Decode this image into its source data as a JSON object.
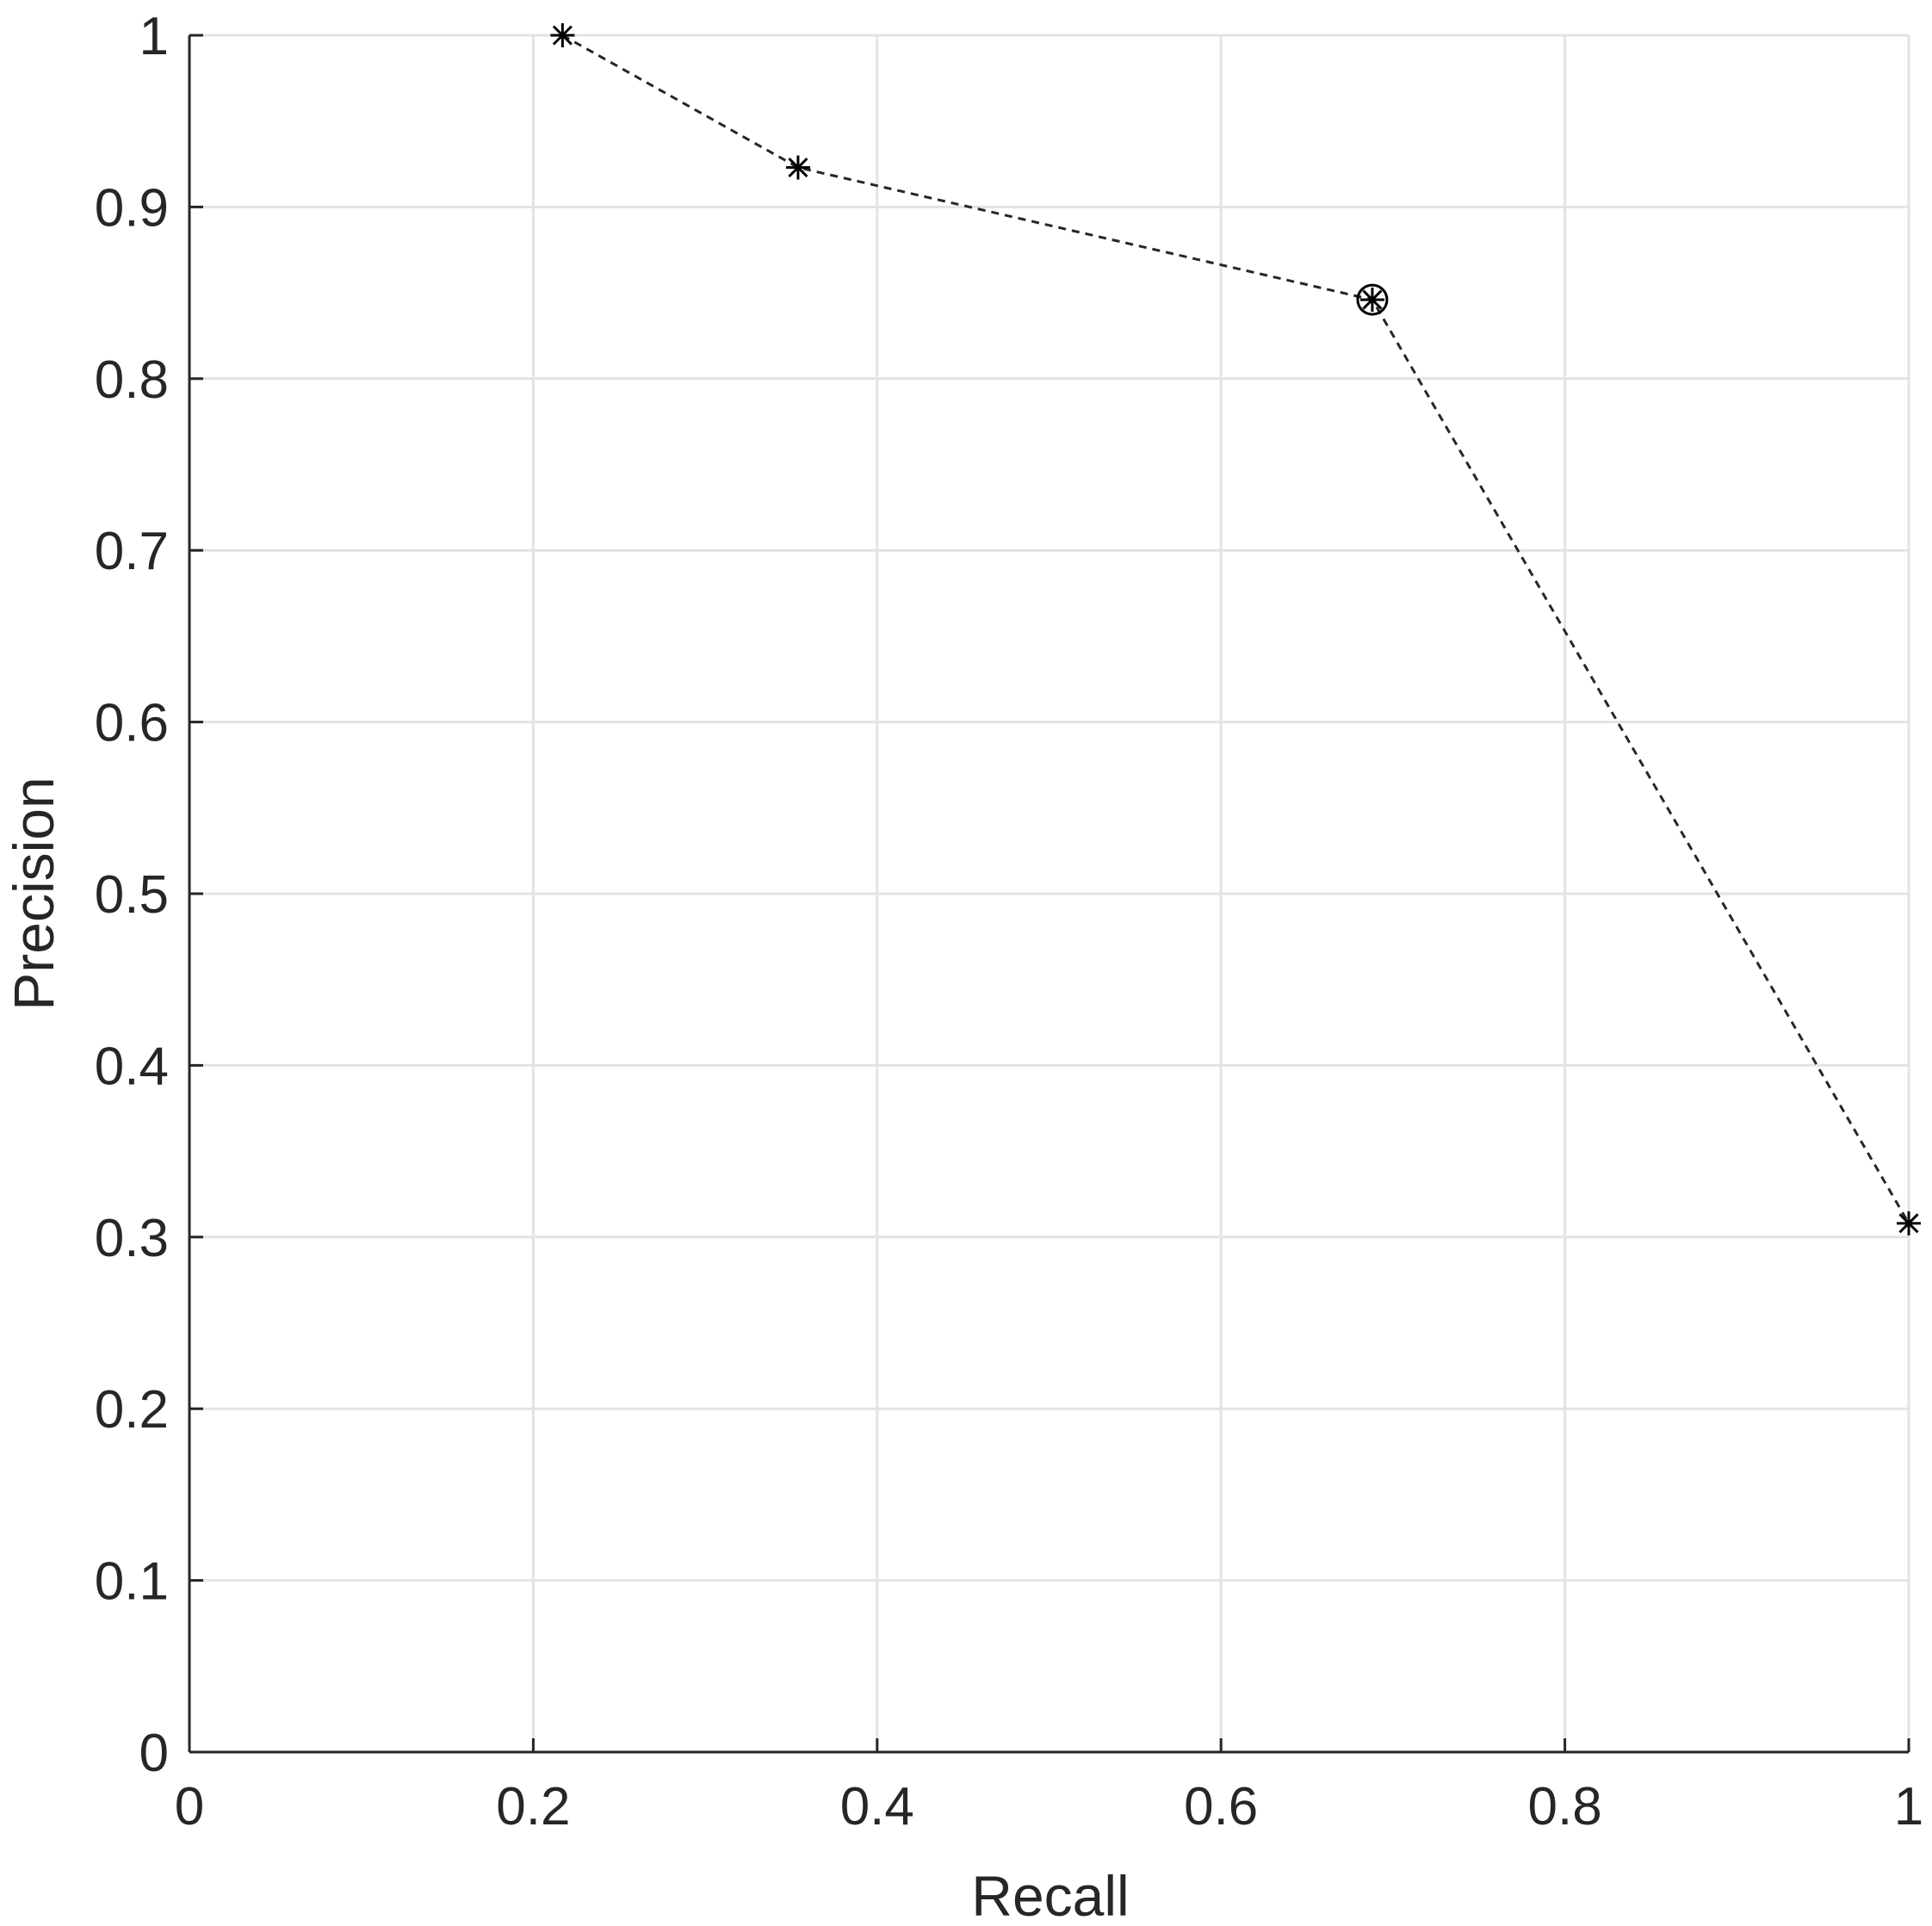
{
  "chart_data": {
    "type": "line",
    "title": "",
    "xlabel": "Recall",
    "ylabel": "Precision",
    "xlim": [
      0,
      1
    ],
    "ylim": [
      0,
      1
    ],
    "grid": true,
    "x_ticks": [
      0,
      0.2,
      0.4,
      0.6,
      0.8,
      1
    ],
    "y_ticks": [
      0,
      0.1,
      0.2,
      0.3,
      0.4,
      0.5,
      0.6,
      0.7,
      0.8,
      0.9,
      1
    ],
    "x_tick_labels": [
      "0",
      "0.2",
      "0.4",
      "0.6",
      "0.8",
      "1"
    ],
    "y_tick_labels": [
      "0",
      "0.1",
      "0.2",
      "0.3",
      "0.4",
      "0.5",
      "0.6",
      "0.7",
      "0.8",
      "0.9",
      "1"
    ],
    "series": [
      {
        "line_style": "dashed",
        "marker": "asterisk",
        "color": "#262626",
        "points": [
          {
            "x": 0.217,
            "y": 1.0
          },
          {
            "x": 0.354,
            "y": 0.923
          },
          {
            "x": 0.688,
            "y": 0.846,
            "highlight": "circle"
          },
          {
            "x": 1.0,
            "y": 0.308
          }
        ]
      }
    ]
  }
}
